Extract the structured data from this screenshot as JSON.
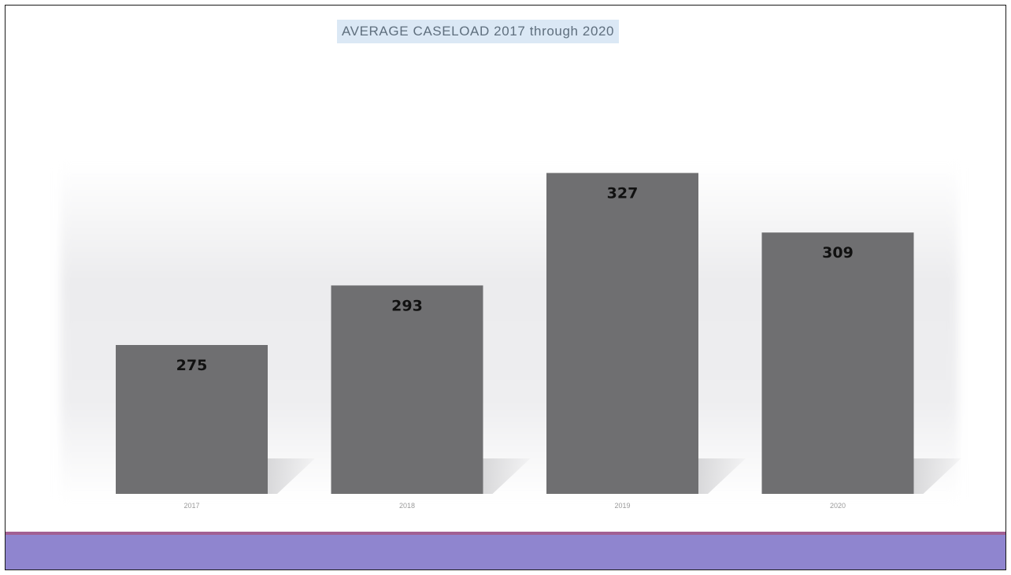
{
  "colors": {
    "bar": "#6f6f71",
    "bar_shadow": "#d4d4d6",
    "title_background": "#dbe8f5",
    "footer_band": "#8f85cf",
    "footer_accent": "#a25f93"
  },
  "chart_data": {
    "type": "bar",
    "title": "AVERAGE CASELOAD 2017 through 2020",
    "categories": [
      "2017",
      "2018",
      "2019",
      "2020"
    ],
    "values": [
      275,
      293,
      327,
      309
    ],
    "data_labels": [
      "275",
      "293",
      "327",
      "309"
    ],
    "xlabel": "",
    "ylabel": "",
    "ylim": [
      230,
      345
    ],
    "grid": false,
    "legend": "none"
  }
}
